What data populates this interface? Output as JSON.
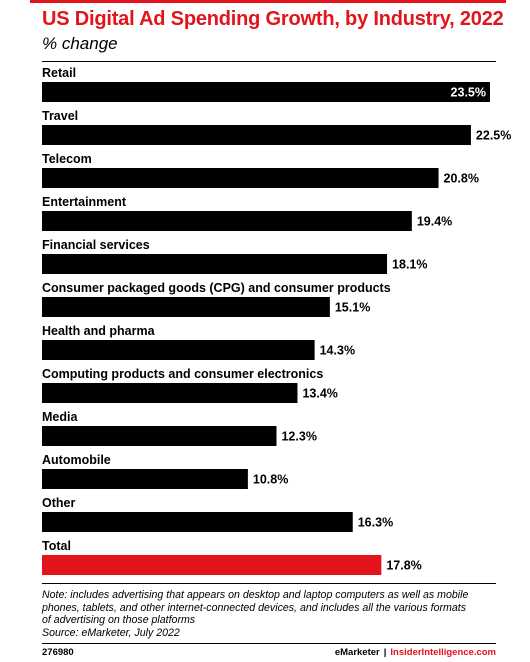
{
  "header": {
    "title": "US Digital Ad Spending Growth, by Industry, 2022",
    "subtitle": "% change"
  },
  "chart_data": {
    "type": "bar",
    "orientation": "horizontal",
    "categories": [
      "Retail",
      "Travel",
      "Telecom",
      "Entertainment",
      "Financial services",
      "Consumer packaged goods (CPG) and consumer products",
      "Health and pharma",
      "Computing products and consumer electronics",
      "Media",
      "Automobile",
      "Other",
      "Total"
    ],
    "values": [
      23.5,
      22.5,
      20.8,
      19.4,
      18.1,
      15.1,
      14.3,
      13.4,
      12.3,
      10.8,
      16.3,
      17.8
    ],
    "value_labels": [
      "23.5%",
      "22.5%",
      "20.8%",
      "19.4%",
      "18.1%",
      "15.1%",
      "14.3%",
      "13.4%",
      "12.3%",
      "10.8%",
      "16.3%",
      "17.8%"
    ],
    "highlight_index": 11,
    "title": "US Digital Ad Spending Growth, by Industry, 2022",
    "subtitle": "% change",
    "xlim": [
      0,
      23.5
    ],
    "grid": false,
    "colors": {
      "bar": "#000000",
      "highlight": "#e3141b",
      "label_inside": "#ffffff",
      "label_outside": "#000000"
    }
  },
  "notes": {
    "lines": [
      "Note: includes advertising that appears on desktop and laptop computers as well as mobile",
      "phones, tablets, and other internet-connected devices, and includes all the various formats",
      "of advertising on those platforms",
      "Source: eMarketer, July 2022"
    ]
  },
  "footer": {
    "chart_id": "276980",
    "brand_emarketer": "eMarketer",
    "separator": "|",
    "brand_insider": "InsiderIntelligence.com"
  }
}
